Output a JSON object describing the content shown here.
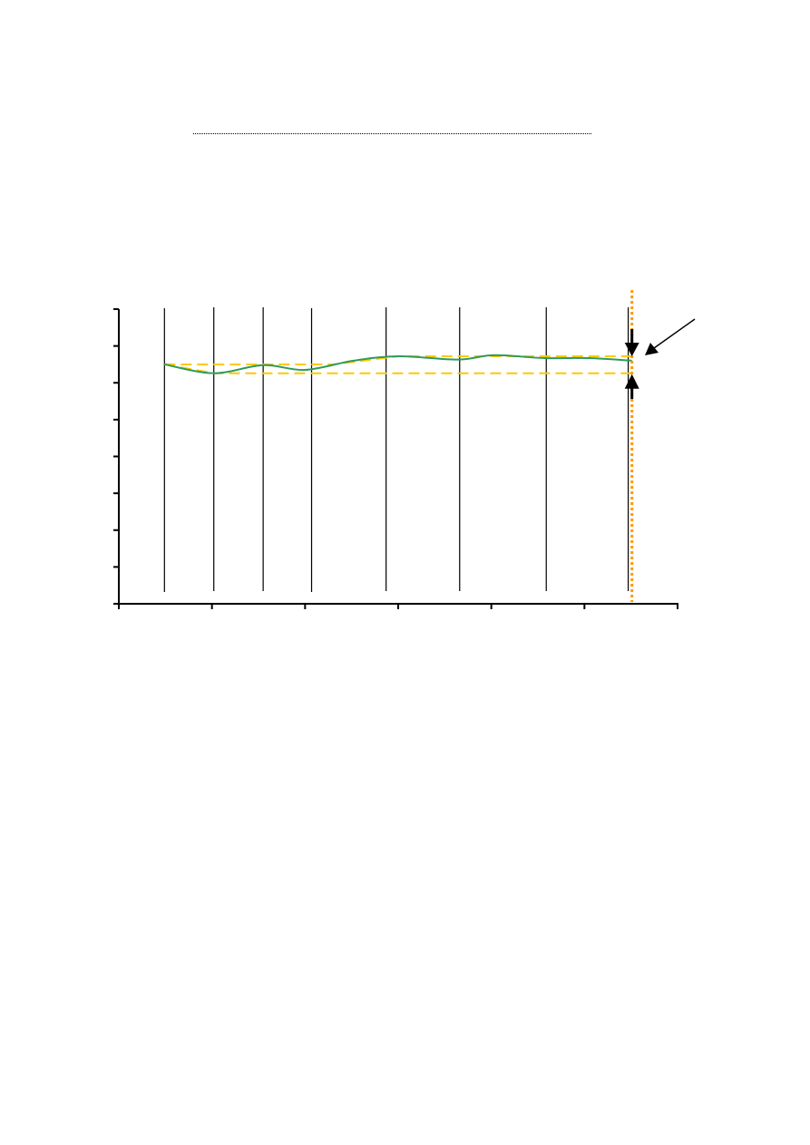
{
  "chart_data": {
    "type": "line",
    "title": "",
    "xlabel": "",
    "ylabel": "",
    "xlim": [
      0,
      6
    ],
    "ylim": [
      0,
      8
    ],
    "x_ticks": [
      0,
      1,
      2,
      3,
      4,
      5,
      6
    ],
    "y_ticks": [
      0,
      1,
      2,
      3,
      4,
      5,
      6,
      7,
      8
    ],
    "grid": false,
    "legend": "none",
    "series": [
      {
        "color": "#2e9a5e",
        "x": [
          0.49,
          1.02,
          1.55,
          2.0,
          2.52,
          3.01,
          3.64,
          4.03,
          4.57,
          5.05,
          5.51
        ],
        "y": [
          6.5,
          6.26,
          6.48,
          6.35,
          6.6,
          6.72,
          6.63,
          6.75,
          6.67,
          6.67,
          6.6
        ]
      }
    ],
    "vertical_markers": [
      0.49,
      1.02,
      1.55,
      2.07,
      2.87,
      3.66,
      4.59,
      5.47
    ],
    "envelope_upper": {
      "color": "#ffc800",
      "x": [
        0.49,
        2.3,
        3.0,
        5.51
      ],
      "y": [
        6.5,
        6.5,
        6.72,
        6.72
      ]
    },
    "envelope_lower": {
      "color": "#ffc800",
      "x": [
        0.49,
        1.02,
        5.51
      ],
      "y": [
        6.5,
        6.26,
        6.26
      ]
    },
    "reference_line": {
      "color": "#ff9900",
      "x": 5.51
    },
    "annotation_arrows": [
      "range-arrow-down",
      "range-arrow-up",
      "pointer-arrow"
    ]
  }
}
